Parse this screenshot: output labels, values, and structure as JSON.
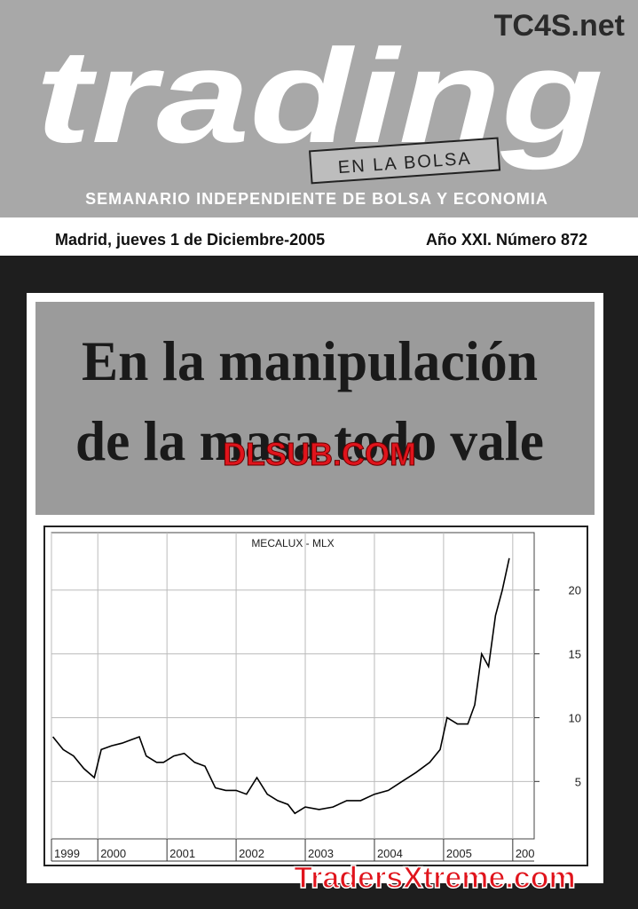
{
  "header": {
    "logo": "TC4S.net",
    "title": "trading",
    "tag": "EN LA BOLSA",
    "subtitle": "SEMANARIO INDEPENDIENTE DE BOLSA Y ECONOMIA",
    "dateline": "Madrid, jueves 1 de Diciembre-2005",
    "issue": "Año XXI. Número 872"
  },
  "headline": [
    "En la manipulación",
    "de la masa todo vale"
  ],
  "watermarks": [
    "DLSUB.COM",
    "TradersXtreme.com"
  ],
  "chart_data": {
    "type": "line",
    "title": "MECALUX - MLX",
    "color": "#000000",
    "grid": true,
    "x": [
      1999.35,
      1999.5,
      1999.65,
      1999.8,
      1999.95,
      2000.05,
      2000.2,
      2000.35,
      2000.5,
      2000.6,
      2000.7,
      2000.85,
      2000.95,
      2001.1,
      2001.25,
      2001.4,
      2001.55,
      2001.7,
      2001.85,
      2002.0,
      2002.15,
      2002.3,
      2002.45,
      2002.6,
      2002.75,
      2002.85,
      2003.0,
      2003.2,
      2003.4,
      2003.6,
      2003.8,
      2004.0,
      2004.2,
      2004.4,
      2004.6,
      2004.8,
      2004.95,
      2005.05,
      2005.2,
      2005.35,
      2005.45,
      2005.55,
      2005.65,
      2005.75,
      2005.85,
      2005.95
    ],
    "values": [
      8.5,
      7.5,
      7,
      6,
      5.3,
      7.5,
      7.8,
      8,
      8.3,
      8.5,
      7,
      6.5,
      6.5,
      7,
      7.2,
      6.5,
      6.2,
      4.5,
      4.3,
      4.3,
      4,
      5.3,
      4,
      3.5,
      3.2,
      2.5,
      3,
      2.8,
      3,
      3.5,
      3.5,
      4,
      4.3,
      5,
      5.7,
      6.5,
      7.5,
      10,
      9.5,
      9.5,
      11,
      15,
      14,
      18,
      20,
      22.5
    ],
    "xlim": [
      1999.33,
      2006.31
    ],
    "ylim": [
      0.5,
      24.5
    ],
    "xticks": [
      {
        "value": 1999.33,
        "label": "1999"
      },
      2000,
      2001,
      2002,
      2003,
      2004,
      2005,
      {
        "value": 2006,
        "label": "200"
      }
    ],
    "yticks": [
      5,
      10,
      15,
      20
    ]
  }
}
